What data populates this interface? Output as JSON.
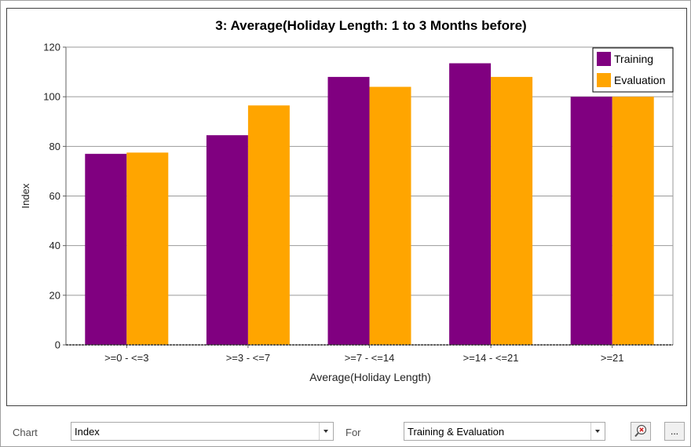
{
  "chart_data": {
    "type": "bar",
    "title": "3: Average(Holiday Length: 1 to 3 Months before)",
    "xlabel": "Average(Holiday Length)",
    "ylabel": "Index",
    "ylim": [
      0,
      120
    ],
    "yticks": [
      0,
      20,
      40,
      60,
      80,
      100,
      120
    ],
    "grid": true,
    "legend_position": "top-right",
    "categories": [
      ">=0 - <=3",
      ">=3 - <=7",
      ">=7 - <=14",
      ">=14 - <=21",
      ">=21"
    ],
    "series": [
      {
        "name": "Training",
        "color": "#800080",
        "values": [
          77,
          84.5,
          108,
          113.5,
          100
        ]
      },
      {
        "name": "Evaluation",
        "color": "#FFA500",
        "values": [
          77.5,
          96.5,
          104,
          108,
          100
        ]
      }
    ]
  },
  "controls": {
    "chart_label": "Chart",
    "chart_value": "Index",
    "for_label": "For",
    "for_value": "Training & Evaluation",
    "more_button_label": "...",
    "clear_icon": "zoom-clear-icon"
  }
}
